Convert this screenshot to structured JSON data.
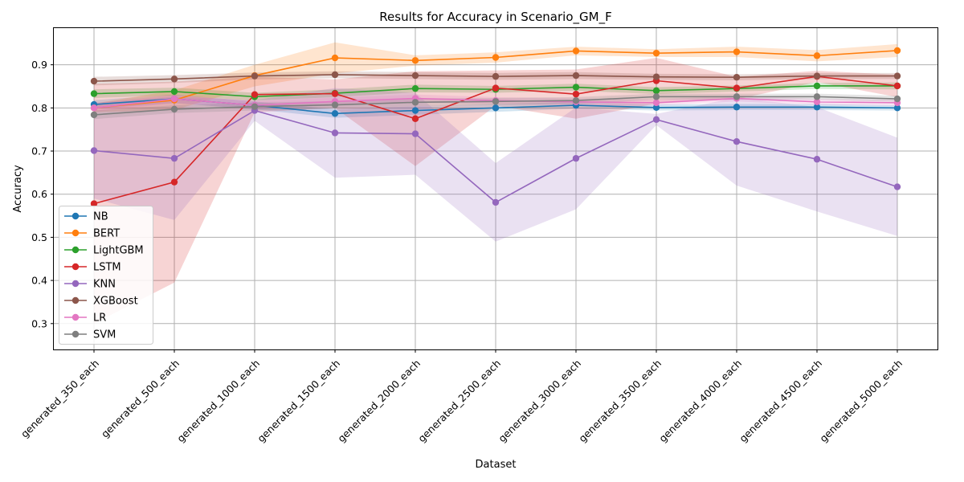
{
  "chart_data": {
    "type": "line",
    "title": "Results for Accuracy in Scenario_GM_F",
    "xlabel": "Dataset",
    "ylabel": "Accuracy",
    "ylim": [
      0.24,
      0.985
    ],
    "yticks": [
      0.3,
      0.4,
      0.5,
      0.6,
      0.7,
      0.8,
      0.9
    ],
    "ytick_labels": [
      "0.3",
      "0.4",
      "0.5",
      "0.6",
      "0.7",
      "0.8",
      "0.9"
    ],
    "grid": true,
    "legend_position": "lower-left",
    "categories": [
      "generated_350_each",
      "generated_500_each",
      "generated_1000_each",
      "generated_1500_each",
      "generated_2000_each",
      "generated_2500_each",
      "generated_3000_each",
      "generated_3500_each",
      "generated_4000_each",
      "generated_4500_each",
      "generated_5000_each"
    ],
    "series": [
      {
        "name": "NB",
        "color": "#1f77b4",
        "values": [
          0.808,
          0.821,
          0.806,
          0.787,
          0.794,
          0.8,
          0.806,
          0.801,
          0.802,
          0.802,
          0.8
        ],
        "band_lower": [
          0.798,
          0.811,
          0.797,
          0.777,
          0.784,
          0.791,
          0.798,
          0.794,
          0.795,
          0.795,
          0.794
        ],
        "band_upper": [
          0.818,
          0.831,
          0.815,
          0.797,
          0.804,
          0.809,
          0.814,
          0.808,
          0.809,
          0.809,
          0.806
        ]
      },
      {
        "name": "BERT",
        "color": "#ff7f0e",
        "values": [
          0.8,
          0.818,
          0.875,
          0.916,
          0.91,
          0.917,
          0.932,
          0.927,
          0.93,
          0.921,
          0.933
        ],
        "band_lower": [
          0.79,
          0.795,
          0.85,
          0.88,
          0.898,
          0.905,
          0.922,
          0.918,
          0.918,
          0.908,
          0.918
        ],
        "band_upper": [
          0.81,
          0.841,
          0.9,
          0.952,
          0.922,
          0.929,
          0.942,
          0.936,
          0.942,
          0.934,
          0.948
        ]
      },
      {
        "name": "LightGBM",
        "color": "#2ca02c",
        "values": [
          0.833,
          0.838,
          0.826,
          0.834,
          0.845,
          0.843,
          0.848,
          0.84,
          0.845,
          0.851,
          0.851
        ],
        "band_lower": [
          0.823,
          0.829,
          0.817,
          0.825,
          0.836,
          0.835,
          0.84,
          0.832,
          0.838,
          0.844,
          0.843
        ],
        "band_upper": [
          0.843,
          0.847,
          0.835,
          0.843,
          0.854,
          0.851,
          0.856,
          0.848,
          0.852,
          0.858,
          0.859
        ]
      },
      {
        "name": "LSTM",
        "color": "#d62728",
        "values": [
          0.578,
          0.628,
          0.831,
          0.833,
          0.775,
          0.846,
          0.832,
          0.863,
          0.846,
          0.873,
          0.851
        ],
        "band_lower": [
          0.3,
          0.395,
          0.79,
          0.8,
          0.665,
          0.805,
          0.775,
          0.81,
          0.82,
          0.86,
          0.825
        ],
        "band_upper": [
          0.856,
          0.861,
          0.872,
          0.866,
          0.885,
          0.887,
          0.889,
          0.916,
          0.872,
          0.886,
          0.877
        ]
      },
      {
        "name": "KNN",
        "color": "#9467bd",
        "values": [
          0.701,
          0.683,
          0.794,
          0.742,
          0.74,
          0.581,
          0.683,
          0.773,
          0.722,
          0.681,
          0.617
        ],
        "band_lower": [
          0.59,
          0.54,
          0.77,
          0.638,
          0.645,
          0.49,
          0.565,
          0.76,
          0.62,
          0.56,
          0.503
        ],
        "band_upper": [
          0.812,
          0.826,
          0.818,
          0.846,
          0.835,
          0.672,
          0.801,
          0.786,
          0.824,
          0.802,
          0.731
        ]
      },
      {
        "name": "XGBoost",
        "color": "#8c564b",
        "values": [
          0.862,
          0.867,
          0.874,
          0.877,
          0.875,
          0.873,
          0.875,
          0.872,
          0.871,
          0.874,
          0.874
        ],
        "band_lower": [
          0.852,
          0.858,
          0.866,
          0.869,
          0.867,
          0.865,
          0.867,
          0.865,
          0.864,
          0.867,
          0.867
        ],
        "band_upper": [
          0.872,
          0.876,
          0.882,
          0.885,
          0.883,
          0.881,
          0.883,
          0.879,
          0.878,
          0.881,
          0.881
        ]
      },
      {
        "name": "LR",
        "color": "#e377c2",
        "values": [
          0.8,
          0.821,
          0.806,
          0.815,
          0.822,
          0.817,
          0.814,
          0.812,
          0.822,
          0.814,
          0.812
        ],
        "band_lower": [
          0.79,
          0.812,
          0.797,
          0.806,
          0.813,
          0.809,
          0.806,
          0.805,
          0.815,
          0.807,
          0.805
        ],
        "band_upper": [
          0.81,
          0.83,
          0.815,
          0.824,
          0.831,
          0.825,
          0.822,
          0.819,
          0.829,
          0.821,
          0.819
        ]
      },
      {
        "name": "SVM",
        "color": "#7f7f7f",
        "values": [
          0.784,
          0.797,
          0.803,
          0.807,
          0.813,
          0.815,
          0.817,
          0.826,
          0.826,
          0.826,
          0.821
        ],
        "band_lower": [
          0.774,
          0.788,
          0.794,
          0.798,
          0.804,
          0.807,
          0.809,
          0.819,
          0.819,
          0.819,
          0.814
        ],
        "band_upper": [
          0.794,
          0.806,
          0.812,
          0.816,
          0.822,
          0.823,
          0.825,
          0.833,
          0.833,
          0.833,
          0.828
        ]
      }
    ]
  }
}
